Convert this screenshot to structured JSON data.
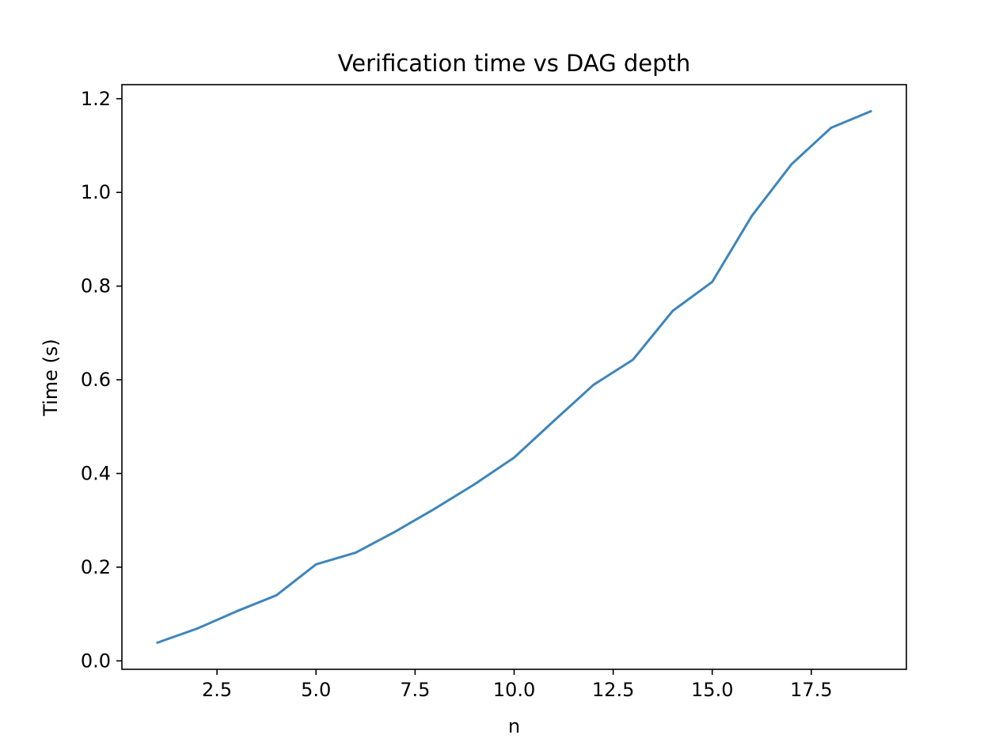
{
  "chart_data": {
    "type": "line",
    "title": "Verification time vs DAG depth",
    "xlabel": "n",
    "ylabel": "Time (s)",
    "xlim": [
      0.1,
      19.9
    ],
    "ylim": [
      -0.018,
      1.23
    ],
    "x_ticks": [
      2.5,
      5.0,
      7.5,
      10.0,
      12.5,
      15.0,
      17.5
    ],
    "x_tick_labels": [
      "2.5",
      "5.0",
      "7.5",
      "10.0",
      "12.5",
      "15.0",
      "17.5"
    ],
    "y_ticks": [
      0.0,
      0.2,
      0.4,
      0.6,
      0.8,
      1.0,
      1.2
    ],
    "y_tick_labels": [
      "0.0",
      "0.2",
      "0.4",
      "0.6",
      "0.8",
      "1.0",
      "1.2"
    ],
    "grid": false,
    "legend": "none",
    "series": [
      {
        "color": "#3e85bb",
        "x": [
          1,
          2,
          3,
          4,
          5,
          6,
          7,
          8,
          9,
          10,
          11,
          12,
          13,
          14,
          15,
          16,
          17,
          18,
          19
        ],
        "y": [
          0.039,
          0.069,
          0.106,
          0.14,
          0.206,
          0.231,
          0.276,
          0.325,
          0.377,
          0.434,
          0.512,
          0.589,
          0.643,
          0.747,
          0.809,
          0.95,
          1.06,
          1.138,
          1.173
        ]
      }
    ]
  }
}
